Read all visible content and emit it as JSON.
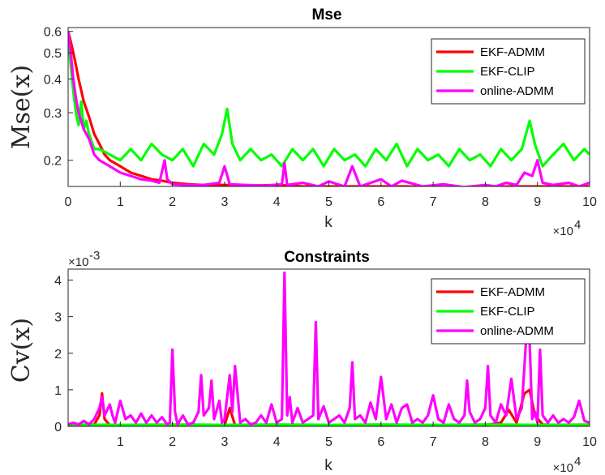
{
  "chart_data": [
    {
      "type": "line",
      "yscale": "log",
      "title": "Mse",
      "xlabel": "k",
      "ylabel": "Mse(x)",
      "x_multiplier": "×10",
      "x_multiplier_exp": "4",
      "xlim": [
        0,
        10
      ],
      "ylim": [
        0.16,
        0.62
      ],
      "xticks": [
        0,
        1,
        2,
        3,
        4,
        5,
        6,
        7,
        8,
        9,
        10
      ],
      "xtick_labels": [
        "0",
        "1",
        "2",
        "3",
        "4",
        "5",
        "6",
        "7",
        "8",
        "9",
        "10"
      ],
      "yticks": [
        0.2,
        0.3,
        0.4,
        0.5,
        0.6
      ],
      "ytick_labels": [
        "0.2",
        "0.3",
        "0.4",
        "0.5",
        "0.6"
      ],
      "legend_position": "top-right",
      "series": [
        {
          "name": "EKF-ADMM",
          "color": "#ff0000",
          "x": [
            0,
            0.05,
            0.1,
            0.15,
            0.2,
            0.3,
            0.4,
            0.5,
            0.6,
            0.7,
            0.8,
            0.9,
            1.0,
            1.2,
            1.4,
            1.6,
            1.8,
            2.0,
            2.3,
            2.6,
            3.0,
            3.5,
            4.0,
            4.5,
            5.0,
            5.5,
            6.0,
            6.5,
            7.0,
            7.5,
            8.0,
            8.5,
            9.0,
            9.5,
            10.0
          ],
          "values": [
            0.6,
            0.55,
            0.5,
            0.45,
            0.4,
            0.33,
            0.29,
            0.25,
            0.23,
            0.21,
            0.2,
            0.195,
            0.19,
            0.18,
            0.175,
            0.17,
            0.168,
            0.165,
            0.163,
            0.162,
            0.162,
            0.161,
            0.162,
            0.16,
            0.16,
            0.16,
            0.16,
            0.16,
            0.159,
            0.159,
            0.159,
            0.16,
            0.16,
            0.16,
            0.16
          ]
        },
        {
          "name": "EKF-CLIP",
          "color": "#00ff00",
          "x": [
            0,
            0.05,
            0.1,
            0.15,
            0.2,
            0.25,
            0.3,
            0.35,
            0.4,
            0.5,
            0.6,
            0.8,
            1.0,
            1.2,
            1.4,
            1.6,
            1.8,
            2.0,
            2.2,
            2.4,
            2.6,
            2.8,
            2.95,
            3.05,
            3.15,
            3.3,
            3.5,
            3.7,
            3.9,
            4.1,
            4.3,
            4.5,
            4.7,
            4.9,
            5.1,
            5.3,
            5.5,
            5.7,
            5.9,
            6.1,
            6.3,
            6.5,
            6.7,
            6.9,
            7.1,
            7.3,
            7.5,
            7.7,
            7.9,
            8.1,
            8.3,
            8.5,
            8.7,
            8.85,
            8.95,
            9.1,
            9.3,
            9.5,
            9.7,
            9.9,
            10.0
          ],
          "values": [
            0.58,
            0.45,
            0.36,
            0.3,
            0.27,
            0.33,
            0.26,
            0.28,
            0.25,
            0.22,
            0.22,
            0.21,
            0.2,
            0.22,
            0.2,
            0.23,
            0.21,
            0.2,
            0.22,
            0.19,
            0.23,
            0.21,
            0.25,
            0.31,
            0.23,
            0.2,
            0.22,
            0.2,
            0.21,
            0.19,
            0.22,
            0.2,
            0.22,
            0.19,
            0.22,
            0.2,
            0.21,
            0.19,
            0.22,
            0.2,
            0.23,
            0.19,
            0.22,
            0.2,
            0.21,
            0.19,
            0.22,
            0.2,
            0.21,
            0.19,
            0.22,
            0.2,
            0.22,
            0.28,
            0.23,
            0.19,
            0.21,
            0.23,
            0.2,
            0.22,
            0.21
          ]
        },
        {
          "name": "online-ADMM",
          "color": "#ff00ff",
          "x": [
            0,
            0.05,
            0.1,
            0.15,
            0.2,
            0.3,
            0.4,
            0.5,
            0.6,
            0.8,
            1.0,
            1.2,
            1.4,
            1.6,
            1.75,
            1.85,
            1.9,
            2.0,
            2.3,
            2.6,
            2.9,
            3.0,
            3.1,
            3.4,
            3.8,
            4.1,
            4.15,
            4.2,
            4.5,
            4.8,
            5.0,
            5.3,
            5.45,
            5.6,
            6.0,
            6.2,
            6.4,
            6.8,
            7.2,
            7.6,
            8.0,
            8.2,
            8.4,
            8.6,
            8.75,
            8.9,
            9.0,
            9.1,
            9.3,
            9.6,
            9.8,
            10.0
          ],
          "values": [
            0.6,
            0.5,
            0.4,
            0.34,
            0.3,
            0.26,
            0.24,
            0.21,
            0.2,
            0.19,
            0.18,
            0.175,
            0.17,
            0.168,
            0.165,
            0.2,
            0.17,
            0.163,
            0.162,
            0.162,
            0.165,
            0.19,
            0.163,
            0.162,
            0.161,
            0.163,
            0.195,
            0.162,
            0.165,
            0.16,
            0.167,
            0.16,
            0.19,
            0.16,
            0.17,
            0.16,
            0.168,
            0.16,
            0.163,
            0.159,
            0.162,
            0.16,
            0.165,
            0.162,
            0.18,
            0.175,
            0.2,
            0.165,
            0.162,
            0.165,
            0.16,
            0.165
          ]
        }
      ]
    },
    {
      "type": "line",
      "title": "Constraints",
      "xlabel": "k",
      "ylabel": "Cv(x)",
      "y_multiplier": "×10",
      "y_multiplier_exp": "-3",
      "x_multiplier": "×10",
      "x_multiplier_exp": "4",
      "xlim": [
        0,
        10
      ],
      "ylim": [
        0,
        4.3
      ],
      "xticks": [
        1,
        2,
        3,
        4,
        5,
        6,
        7,
        8,
        9,
        10
      ],
      "xtick_labels": [
        "1",
        "2",
        "3",
        "4",
        "5",
        "6",
        "7",
        "8",
        "9",
        "10"
      ],
      "yticks": [
        0,
        1,
        2,
        3,
        4
      ],
      "ytick_labels": [
        "0",
        "1",
        "2",
        "3",
        "4"
      ],
      "legend_position": "top-right",
      "series": [
        {
          "name": "EKF-ADMM",
          "color": "#ff0000",
          "x": [
            0,
            0.5,
            0.6,
            0.65,
            0.7,
            0.8,
            1.5,
            2.0,
            2.5,
            3.0,
            3.1,
            3.2,
            4.0,
            4.5,
            5.0,
            6.0,
            7.0,
            8.0,
            8.3,
            8.45,
            8.6,
            8.75,
            8.85,
            8.95,
            9.1,
            9.5,
            10.0
          ],
          "values": [
            0.02,
            0.05,
            0.3,
            0.9,
            0.2,
            0.03,
            0.02,
            0.03,
            0.02,
            0.03,
            0.5,
            0.03,
            0.02,
            0.03,
            0.02,
            0.03,
            0.02,
            0.03,
            0.1,
            0.45,
            0.1,
            0.9,
            1.0,
            0.3,
            0.05,
            0.03,
            0.02
          ]
        },
        {
          "name": "EKF-CLIP",
          "color": "#00ff00",
          "x": [
            0,
            1,
            2,
            3,
            4,
            5,
            6,
            7,
            8,
            9,
            10
          ],
          "values": [
            0.05,
            0.04,
            0.05,
            0.04,
            0.05,
            0.04,
            0.05,
            0.04,
            0.05,
            0.04,
            0.05
          ]
        },
        {
          "name": "online-ADMM",
          "color": "#ff00ff",
          "x": [
            0,
            0.1,
            0.2,
            0.3,
            0.4,
            0.5,
            0.6,
            0.65,
            0.7,
            0.8,
            0.85,
            0.9,
            1.0,
            1.1,
            1.2,
            1.3,
            1.4,
            1.5,
            1.6,
            1.7,
            1.8,
            1.9,
            1.95,
            2.0,
            2.05,
            2.1,
            2.2,
            2.3,
            2.4,
            2.5,
            2.55,
            2.6,
            2.7,
            2.75,
            2.8,
            2.9,
            2.95,
            3.0,
            3.1,
            3.15,
            3.2,
            3.3,
            3.4,
            3.5,
            3.6,
            3.7,
            3.8,
            3.9,
            4.0,
            4.1,
            4.15,
            4.2,
            4.25,
            4.3,
            4.4,
            4.5,
            4.6,
            4.7,
            4.75,
            4.8,
            4.9,
            5.0,
            5.1,
            5.2,
            5.3,
            5.4,
            5.45,
            5.5,
            5.6,
            5.7,
            5.8,
            5.9,
            6.0,
            6.1,
            6.2,
            6.3,
            6.4,
            6.5,
            6.6,
            6.7,
            6.8,
            6.9,
            7.0,
            7.1,
            7.2,
            7.3,
            7.4,
            7.5,
            7.6,
            7.65,
            7.7,
            7.8,
            7.9,
            8.0,
            8.05,
            8.1,
            8.2,
            8.3,
            8.4,
            8.5,
            8.6,
            8.7,
            8.8,
            8.85,
            8.9,
            8.95,
            9.0,
            9.05,
            9.1,
            9.2,
            9.3,
            9.4,
            9.5,
            9.6,
            9.7,
            9.8,
            9.9,
            10.0
          ],
          "values": [
            0.05,
            0.1,
            0.05,
            0.15,
            0.05,
            0.2,
            0.5,
            0.8,
            0.3,
            0.6,
            0.3,
            0.1,
            0.7,
            0.2,
            0.3,
            0.1,
            0.35,
            0.1,
            0.3,
            0.1,
            0.25,
            0.05,
            0.1,
            2.1,
            0.4,
            0.05,
            0.3,
            0.05,
            0.1,
            0.4,
            1.4,
            0.3,
            0.5,
            1.25,
            0.2,
            0.7,
            0.1,
            0.2,
            1.4,
            0.4,
            1.65,
            0.1,
            0.2,
            0.05,
            0.1,
            0.3,
            0.1,
            0.6,
            0.1,
            0.2,
            4.2,
            0.3,
            0.8,
            0.1,
            0.5,
            0.1,
            0.2,
            0.3,
            2.85,
            0.2,
            0.55,
            0.1,
            0.2,
            0.3,
            0.1,
            0.5,
            1.75,
            0.2,
            0.3,
            0.1,
            0.65,
            0.2,
            1.35,
            0.2,
            0.6,
            0.1,
            0.5,
            0.6,
            0.1,
            0.2,
            0.1,
            0.3,
            0.85,
            0.2,
            0.1,
            0.6,
            0.2,
            0.1,
            0.3,
            1.25,
            0.4,
            0.1,
            0.2,
            0.5,
            1.65,
            0.3,
            0.1,
            0.6,
            0.3,
            1.3,
            0.2,
            0.5,
            2.75,
            2.3,
            0.2,
            0.4,
            0.1,
            2.1,
            0.3,
            0.1,
            0.3,
            0.1,
            0.2,
            0.1,
            0.25,
            0.7,
            0.15,
            0.1
          ]
        }
      ]
    }
  ]
}
